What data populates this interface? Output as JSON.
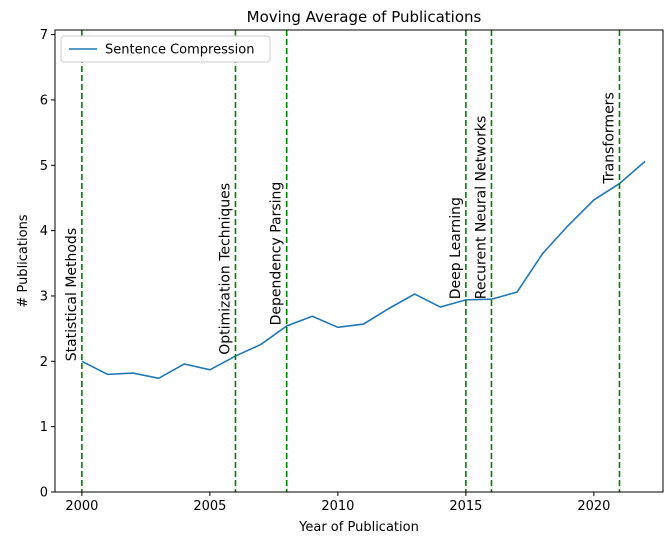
{
  "chart_data": {
    "type": "line",
    "title": "Moving Average of Publications",
    "xlabel": "Year of Publication",
    "ylabel": "# Publications",
    "x": [
      2000,
      2001,
      2002,
      2003,
      2004,
      2005,
      2006,
      2007,
      2008,
      2009,
      2010,
      2011,
      2012,
      2013,
      2014,
      2015,
      2016,
      2017,
      2018,
      2019,
      2020,
      2021,
      2022
    ],
    "series": [
      {
        "name": "Sentence Compression",
        "color": "#1f77b4",
        "values": [
          2.0,
          1.8,
          1.82,
          1.74,
          1.96,
          1.87,
          2.08,
          2.26,
          2.54,
          2.69,
          2.52,
          2.57,
          2.81,
          3.03,
          2.83,
          2.94,
          2.95,
          3.06,
          3.65,
          4.08,
          4.47,
          4.72,
          5.06
        ]
      }
    ],
    "xlim": [
      1998.95,
      2022.7
    ],
    "ylim": [
      0,
      7.07
    ],
    "xticks": [
      2000,
      2005,
      2010,
      2015,
      2020
    ],
    "yticks": [
      0,
      1,
      2,
      3,
      4,
      5,
      6,
      7
    ],
    "legend": "upper left",
    "annotations": [
      {
        "x": 2000,
        "y": 2.0,
        "text": "Statistical Methods"
      },
      {
        "x": 2006,
        "y": 2.1,
        "text": "Optimization Techniques"
      },
      {
        "x": 2008,
        "y": 2.55,
        "text": "Dependency Parsing"
      },
      {
        "x": 2015,
        "y": 2.95,
        "text": "Deep Learning"
      },
      {
        "x": 2016,
        "y": 2.95,
        "text": "Recurent Neural Networks"
      },
      {
        "x": 2021,
        "y": 4.72,
        "text": "Transformers"
      }
    ],
    "annotation_color": "green"
  }
}
